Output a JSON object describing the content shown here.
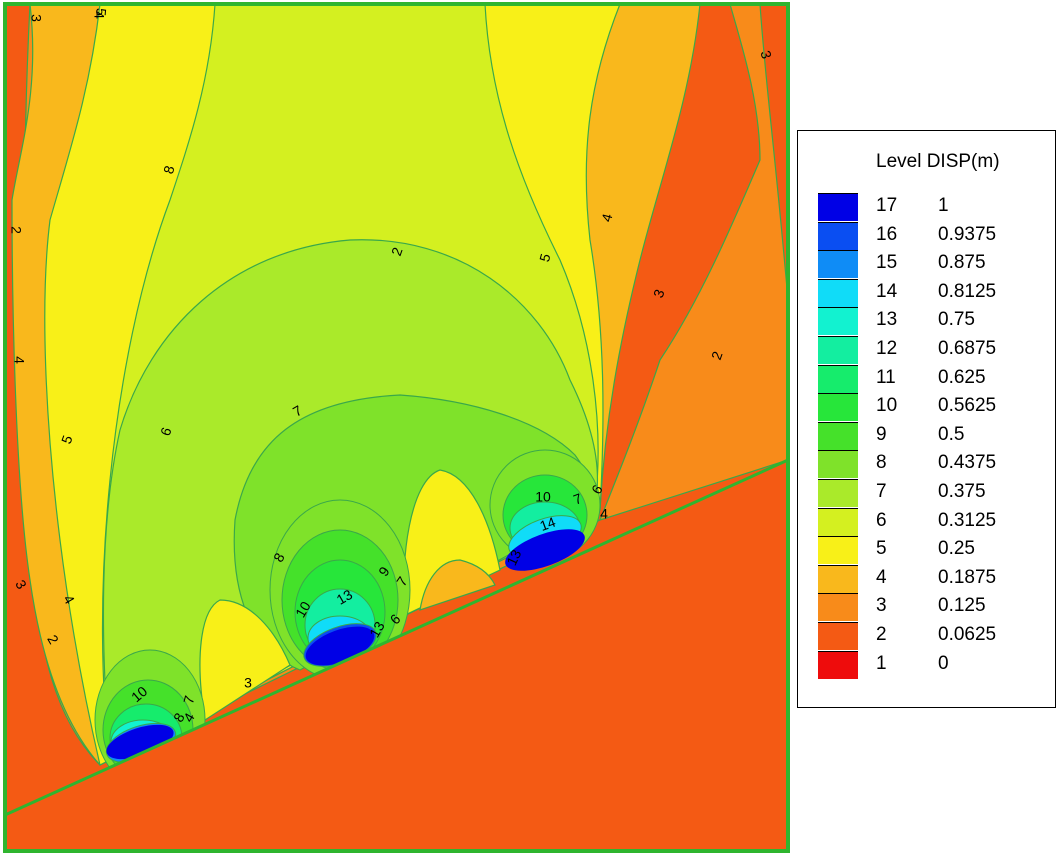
{
  "chart_data": {
    "type": "contour",
    "legend": {
      "title": "Level DISP(m)",
      "placement": "right",
      "levels": [
        {
          "level": "17",
          "value": "1",
          "color": "#0000e6"
        },
        {
          "level": "16",
          "value": "0.9375",
          "color": "#0a4ef2"
        },
        {
          "level": "15",
          "value": "0.875",
          "color": "#0f8cf6"
        },
        {
          "level": "14",
          "value": "0.8125",
          "color": "#10dcf8"
        },
        {
          "level": "13",
          "value": "0.75",
          "color": "#12f2d0"
        },
        {
          "level": "12",
          "value": "0.6875",
          "color": "#13eea0"
        },
        {
          "level": "11",
          "value": "0.625",
          "color": "#16ec6c"
        },
        {
          "level": "10",
          "value": "0.5625",
          "color": "#27e63a"
        },
        {
          "level": "9",
          "value": "0.5",
          "color": "#45e12a"
        },
        {
          "level": "8",
          "value": "0.4375",
          "color": "#7fe22a"
        },
        {
          "level": "7",
          "value": "0.375",
          "color": "#aaea2a"
        },
        {
          "level": "6",
          "value": "0.3125",
          "color": "#d4f020"
        },
        {
          "level": "5",
          "value": "0.25",
          "color": "#f8f018"
        },
        {
          "level": "4",
          "value": "0.1875",
          "color": "#f9b81c"
        },
        {
          "level": "3",
          "value": "0.125",
          "color": "#f88b1a"
        },
        {
          "level": "2",
          "value": "0.0625",
          "color": "#f45a14"
        },
        {
          "level": "1",
          "value": "0",
          "color": "#ee0c0c"
        }
      ]
    },
    "contour_labels": [
      "3",
      "4",
      "2",
      "4",
      "5",
      "3",
      "2",
      "8",
      "5",
      "4",
      "3",
      "2",
      "7",
      "6",
      "5",
      "4",
      "4",
      "2",
      "3",
      "8",
      "10",
      "13",
      "9",
      "7",
      "10",
      "14",
      "7",
      "6",
      "4",
      "10",
      "8",
      "7",
      "3",
      "13",
      "13",
      "6"
    ],
    "colors": {
      "border": "#2fb52f",
      "contour_line": "#3aa84a"
    }
  }
}
